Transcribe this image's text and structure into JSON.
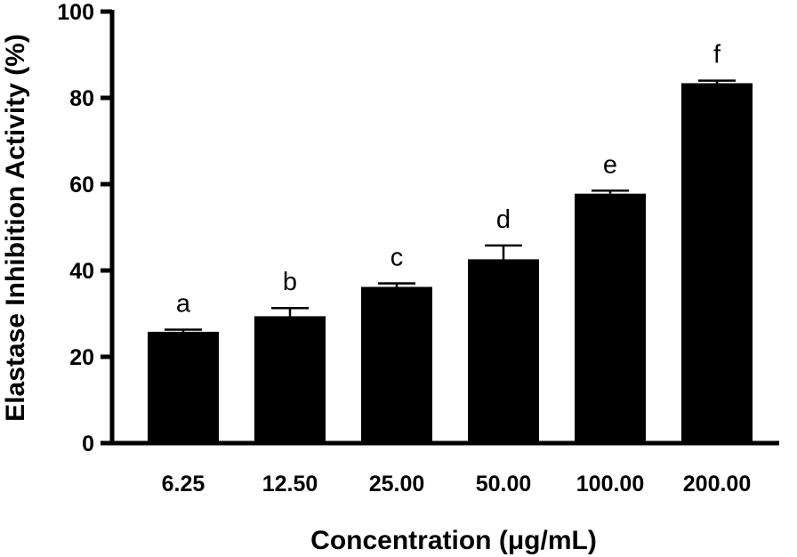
{
  "chart_data": {
    "type": "bar",
    "title": "",
    "xlabel": "Concentration (μg/mL)",
    "ylabel": "Elastase Inhibition  Activity (%)",
    "categories": [
      "6.25",
      "12.50",
      "25.00",
      "50.00",
      "100.00",
      "200.00"
    ],
    "values": [
      25.8,
      29.4,
      36.2,
      42.6,
      57.8,
      83.4
    ],
    "errors": [
      0.5,
      1.9,
      0.8,
      3.2,
      0.7,
      0.6
    ],
    "significance_labels": [
      "a",
      "b",
      "c",
      "d",
      "e",
      "f"
    ],
    "ylim": [
      0,
      100
    ],
    "yticks": [
      0,
      20,
      40,
      60,
      80,
      100
    ],
    "grid": false,
    "legend": "none",
    "bar_color": "#000000"
  }
}
